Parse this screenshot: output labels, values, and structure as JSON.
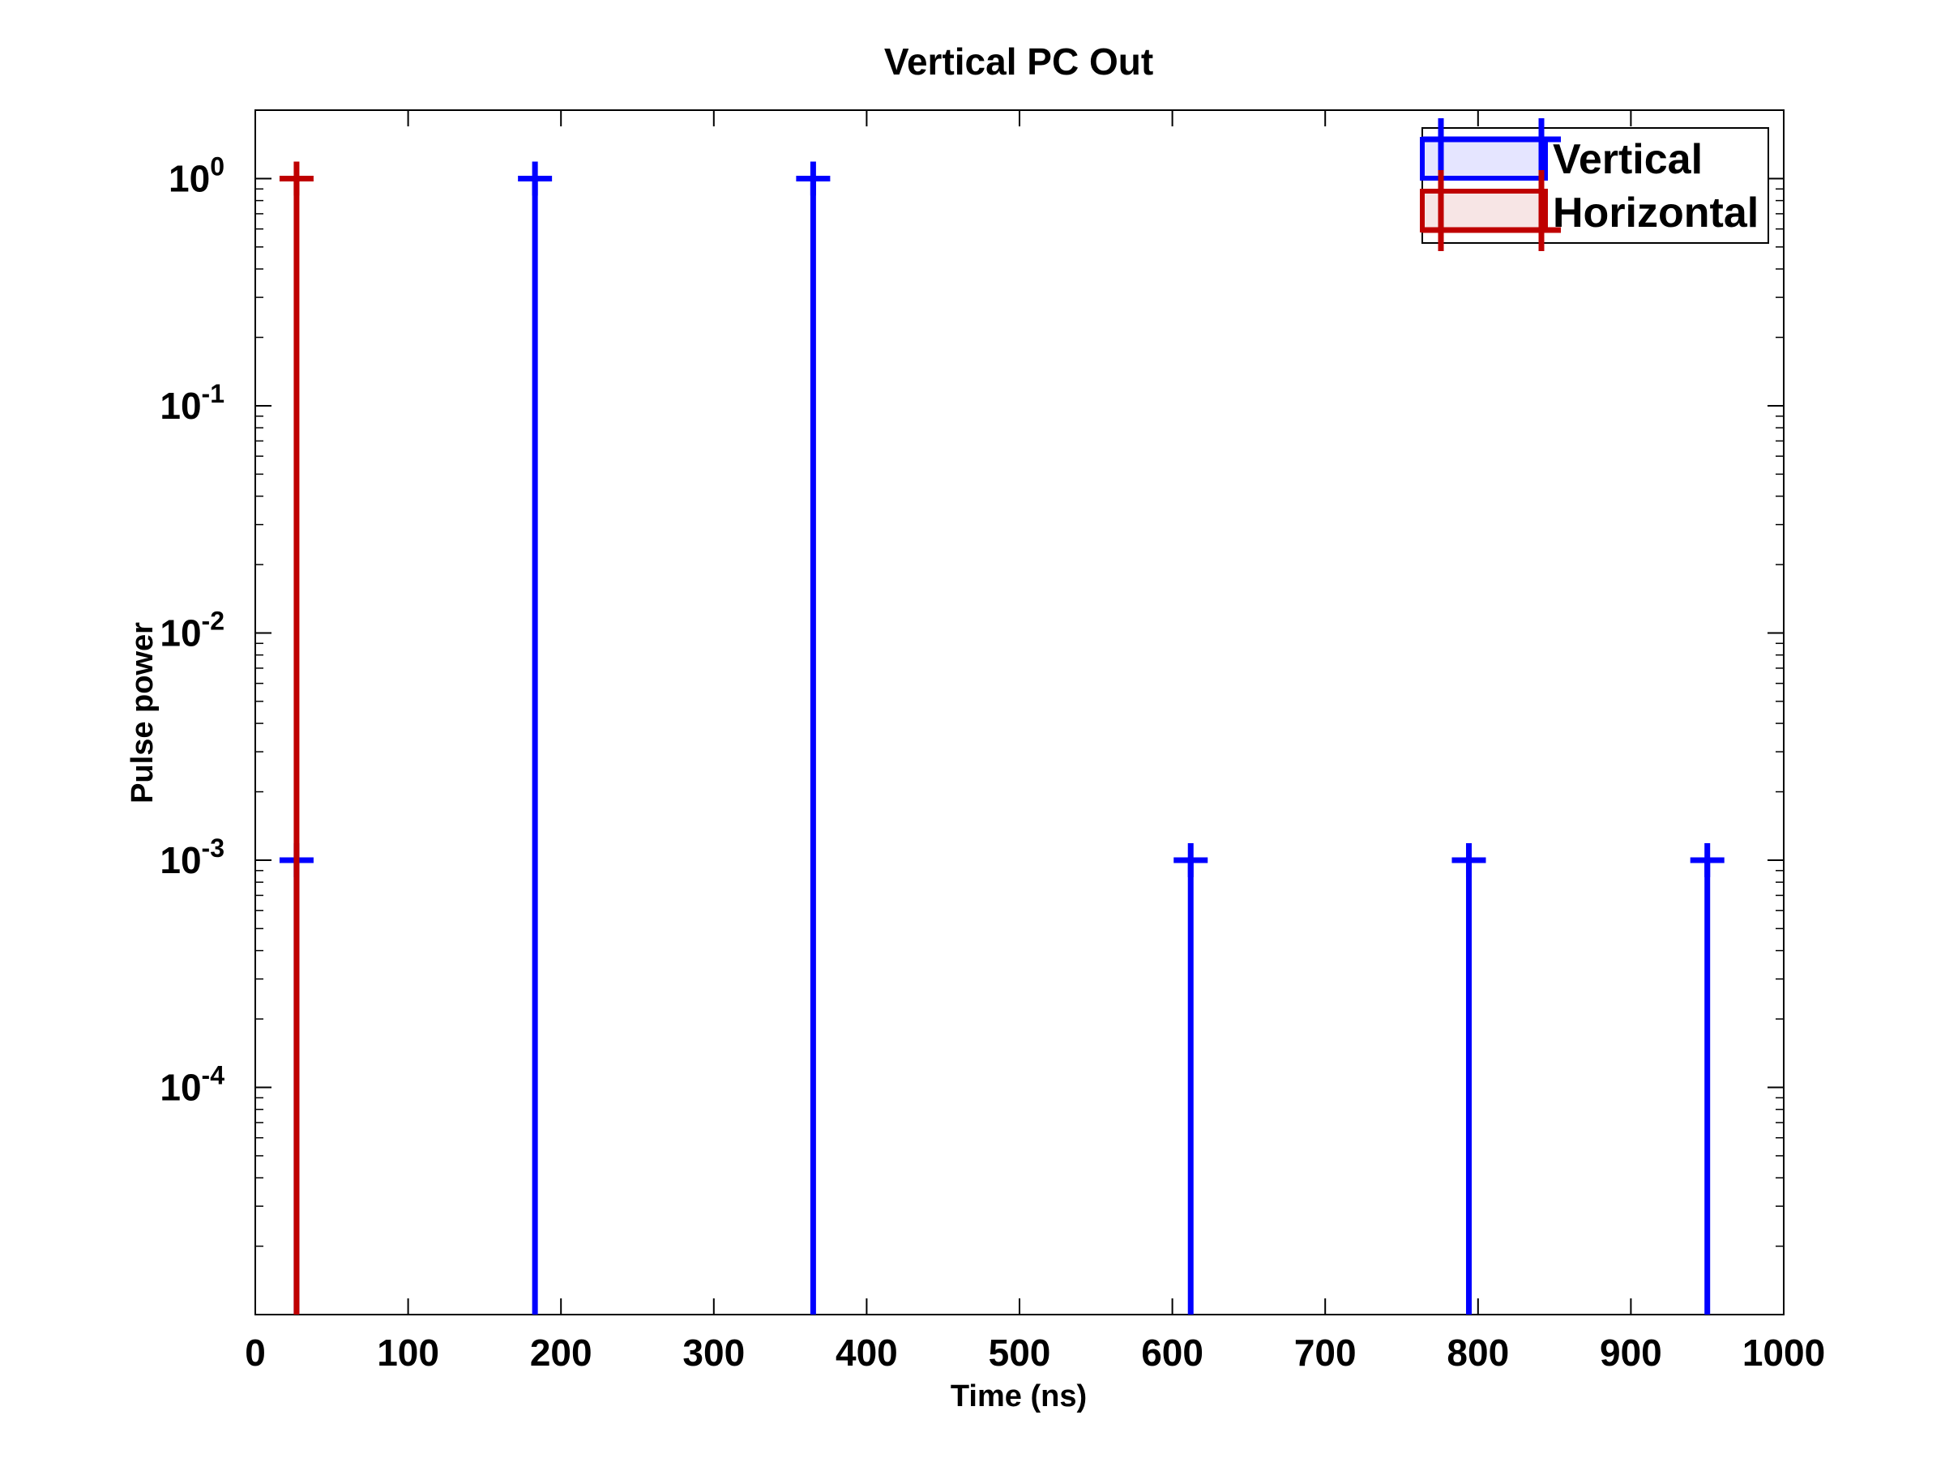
{
  "chart_data": {
    "type": "stem",
    "title": "Vertical PC Out",
    "xlabel": "Time (ns)",
    "ylabel": "Pulse power",
    "xlim": [
      0,
      1000
    ],
    "ylim": [
      1e-05,
      2
    ],
    "yscale": "log",
    "grid": false,
    "legend_position": "top-right",
    "xticks": [
      "0",
      "100",
      "200",
      "300",
      "400",
      "500",
      "600",
      "700",
      "800",
      "900",
      "1000"
    ],
    "yticks": [
      {
        "base": "10",
        "exp": "0"
      },
      {
        "base": "10",
        "exp": "-1"
      },
      {
        "base": "10",
        "exp": "-2"
      },
      {
        "base": "10",
        "exp": "-3"
      },
      {
        "base": "10",
        "exp": "-4"
      }
    ],
    "series": [
      {
        "name": "Vertical",
        "color": "#0000ff",
        "x": [
          27,
          183,
          365,
          612,
          794,
          950
        ],
        "y": [
          0.001,
          1,
          1,
          0.001,
          0.001,
          0.001
        ]
      },
      {
        "name": "Horizontal",
        "color": "#bf0000",
        "x": [
          27
        ],
        "y": [
          1
        ]
      }
    ]
  }
}
